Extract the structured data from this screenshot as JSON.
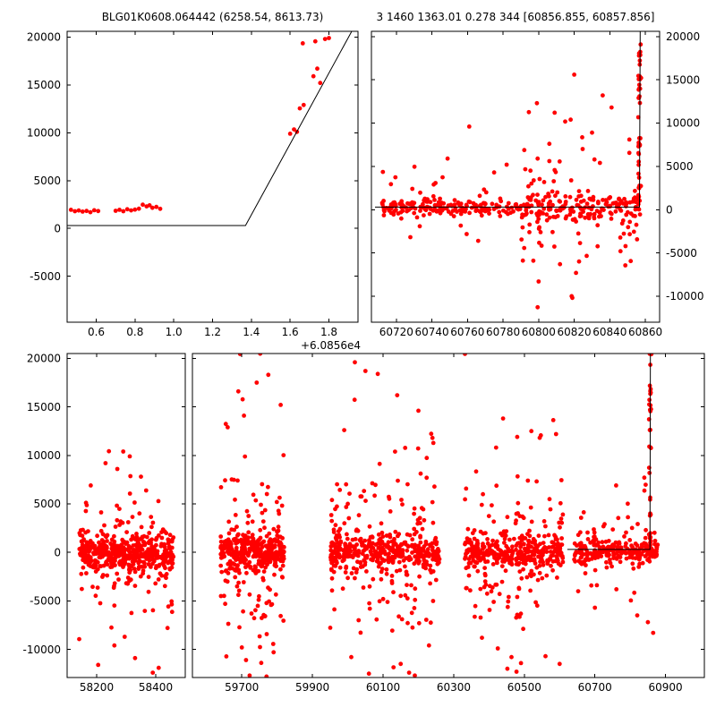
{
  "colors": {
    "background": "#ffffff",
    "point": "#ff0000",
    "line": "#000000",
    "axis": "#000000",
    "text": "#000000"
  },
  "chart_data": {
    "type": "scatter",
    "marker_radius": 2.4,
    "subplots": [
      {
        "name": "event-zoom",
        "title": "BLG01K0608.064442 (6258.54, 8613.73)",
        "px": {
          "l": 75,
          "t": 35,
          "r": 400,
          "b": 360
        },
        "xlim": [
          60856.45,
          60857.95
        ],
        "ylim": [
          -9800,
          20600
        ],
        "x_offset_label": "+6.0856e4",
        "xticks": [
          {
            "v": 60856.6,
            "label": "0.6"
          },
          {
            "v": 60856.8,
            "label": "0.8"
          },
          {
            "v": 60857.0,
            "label": "1.0"
          },
          {
            "v": 60857.2,
            "label": "1.2"
          },
          {
            "v": 60857.4,
            "label": "1.4"
          },
          {
            "v": 60857.6,
            "label": "1.6"
          },
          {
            "v": 60857.8,
            "label": "1.8"
          }
        ],
        "yticks": [
          {
            "v": 20000,
            "label": "20000"
          },
          {
            "v": 15000,
            "label": "15000"
          },
          {
            "v": 10000,
            "label": "10000"
          },
          {
            "v": 5000,
            "label": "5000"
          },
          {
            "v": 0,
            "label": "0"
          },
          {
            "v": -5000,
            "label": "-5000"
          }
        ],
        "ylabel_side": "left",
        "points": [
          [
            60856.47,
            1950
          ],
          [
            60856.49,
            1800
          ],
          [
            60856.51,
            1870
          ],
          [
            60856.53,
            1760
          ],
          [
            60856.55,
            1830
          ],
          [
            60856.57,
            1700
          ],
          [
            60856.59,
            1900
          ],
          [
            60856.61,
            1820
          ],
          [
            60856.7,
            1850
          ],
          [
            60856.72,
            1950
          ],
          [
            60856.74,
            1800
          ],
          [
            60856.76,
            2000
          ],
          [
            60856.78,
            1880
          ],
          [
            60856.8,
            1970
          ],
          [
            60856.82,
            2060
          ],
          [
            60856.84,
            2480
          ],
          [
            60856.86,
            2300
          ],
          [
            60856.875,
            2420
          ],
          [
            60856.89,
            2150
          ],
          [
            60856.91,
            2250
          ],
          [
            60856.93,
            2050
          ],
          [
            60857.6,
            9900
          ],
          [
            60857.62,
            10350
          ],
          [
            60857.635,
            10100
          ],
          [
            60857.65,
            12550
          ],
          [
            60857.67,
            12900
          ],
          [
            60857.665,
            19350
          ],
          [
            60857.72,
            15900
          ],
          [
            60857.73,
            19550
          ],
          [
            60857.74,
            16700
          ],
          [
            60857.755,
            15200
          ],
          [
            60857.78,
            19800
          ],
          [
            60857.8,
            19900
          ]
        ],
        "clusters": [],
        "lines": [
          [
            [
              60856.45,
              300
            ],
            [
              60857.37,
              300
            ],
            [
              60857.95,
              21800
            ]
          ]
        ]
      },
      {
        "name": "season-zoom",
        "title": "3 1460 1363.01 0.278 344 [60856.855, 60857.856]",
        "px": {
          "l": 415,
          "t": 35,
          "r": 737,
          "b": 360
        },
        "xlim": [
          60706,
          60868
        ],
        "ylim": [
          -13000,
          20600
        ],
        "xticks": [
          {
            "v": 60720,
            "label": "60720"
          },
          {
            "v": 60740,
            "label": "60740"
          },
          {
            "v": 60760,
            "label": "60760"
          },
          {
            "v": 60780,
            "label": "60780"
          },
          {
            "v": 60800,
            "label": "60800"
          },
          {
            "v": 60820,
            "label": "60820"
          },
          {
            "v": 60840,
            "label": "60840"
          },
          {
            "v": 60860,
            "label": "60860"
          }
        ],
        "yticks": [
          {
            "v": 20000,
            "label": "20000"
          },
          {
            "v": 15000,
            "label": "15000"
          },
          {
            "v": 10000,
            "label": "10000"
          },
          {
            "v": 5000,
            "label": "5000"
          },
          {
            "v": 0,
            "label": "0"
          },
          {
            "v": -5000,
            "label": "-5000"
          },
          {
            "v": -10000,
            "label": "-10000"
          }
        ],
        "ylabel_side": "right",
        "points": [
          [
            60800,
            -8300
          ],
          [
            60797,
            -5900
          ],
          [
            60812,
            -6300
          ],
          [
            60846,
            -4800
          ],
          [
            60821,
            -7300
          ],
          [
            60820,
            15600
          ],
          [
            60836,
            13200
          ],
          [
            60818,
            10400
          ],
          [
            60761,
            9600
          ],
          [
            60830,
            8900
          ],
          [
            60841,
            11800
          ],
          [
            60851,
            8100
          ],
          [
            60806,
            7600
          ],
          [
            60782,
            5200
          ],
          [
            60775,
            4300
          ],
          [
            60799,
            12300
          ],
          [
            60809,
            11200
          ],
          [
            60766,
            -3600
          ],
          [
            60741,
            2900
          ],
          [
            60729,
            2400
          ]
        ],
        "clusters": [
          {
            "seed": 11,
            "x0": 60712,
            "x1": 60790,
            "n": 190,
            "mean": 250,
            "core_sigma": 450,
            "tail_frac": 0.1,
            "tail_sigma": 2300
          },
          {
            "seed": 12,
            "x0": 60790,
            "x1": 60858,
            "n": 230,
            "mean": 250,
            "core_sigma": 800,
            "tail_frac": 0.3,
            "tail_sigma": 4200
          },
          {
            "seed": 13,
            "x0": 60856.0,
            "x1": 60857.6,
            "n": 42,
            "uniform_y": [
              500,
              19700
            ]
          }
        ],
        "lines": [
          [
            [
              60708,
              300
            ],
            [
              60856.7,
              300
            ],
            [
              60857.1,
              20600
            ]
          ]
        ]
      },
      {
        "name": "full-early",
        "title": "",
        "px": {
          "l": 75,
          "t": 395,
          "r": 207,
          "b": 757
        },
        "xlim": [
          58100,
          58500
        ],
        "ylim": [
          -12900,
          20500
        ],
        "xticks": [
          {
            "v": 58200,
            "label": "58200"
          },
          {
            "v": 58400,
            "label": "58400"
          }
        ],
        "yticks": [
          {
            "v": 20000,
            "label": "20000"
          },
          {
            "v": 15000,
            "label": "15000"
          },
          {
            "v": 10000,
            "label": "10000"
          },
          {
            "v": 5000,
            "label": "5000"
          },
          {
            "v": 0,
            "label": "0"
          },
          {
            "v": -5000,
            "label": "-5000"
          },
          {
            "v": -10000,
            "label": "-10000"
          }
        ],
        "ylabel_side": "left",
        "points": [
          [
            58290,
            10400
          ],
          [
            58312,
            9900
          ],
          [
            58270,
            8600
          ],
          [
            58350,
            7800
          ],
          [
            58230,
            9200
          ],
          [
            58205,
            -11600
          ],
          [
            58330,
            -10900
          ],
          [
            58390,
            -12400
          ],
          [
            58260,
            -9600
          ],
          [
            58295,
            -8700
          ],
          [
            58410,
            -11900
          ],
          [
            58180,
            6900
          ],
          [
            58440,
            -7800
          ]
        ],
        "clusters": [
          {
            "seed": 21,
            "x0": 58140,
            "x1": 58460,
            "n": 520,
            "mean": -100,
            "core_sigma": 900,
            "tail_frac": 0.22,
            "tail_sigma": 3600
          }
        ],
        "lines": []
      },
      {
        "name": "full-recent",
        "title": "",
        "px": {
          "l": 215,
          "t": 395,
          "r": 787,
          "b": 757
        },
        "xlim": [
          59560,
          61010
        ],
        "ylim": [
          -12900,
          20500
        ],
        "xticks": [
          {
            "v": 59700,
            "label": "59700"
          },
          {
            "v": 59900,
            "label": "59900"
          },
          {
            "v": 60100,
            "label": "60100"
          },
          {
            "v": 60300,
            "label": "60300"
          },
          {
            "v": 60500,
            "label": "60500"
          },
          {
            "v": 60700,
            "label": "60700"
          },
          {
            "v": 60900,
            "label": "60900"
          }
        ],
        "yticks": [
          {
            "v": 20000,
            "label": "20000"
          },
          {
            "v": 15000,
            "label": "15000"
          },
          {
            "v": 10000,
            "label": "10000"
          },
          {
            "v": 5000,
            "label": "5000"
          },
          {
            "v": 0,
            "label": "0"
          },
          {
            "v": -5000,
            "label": "-5000"
          },
          {
            "v": -10000,
            "label": "-10000"
          }
        ],
        "ylabel_side": "none",
        "points": [
          [
            59690,
            16600
          ],
          [
            59660,
            12900
          ],
          [
            59775,
            18300
          ],
          [
            59810,
            15200
          ],
          [
            59742,
            17500
          ],
          [
            59706,
            14100
          ],
          [
            59695,
            20450
          ],
          [
            59752,
            20480
          ],
          [
            59722,
            -12700
          ],
          [
            59755,
            -11400
          ],
          [
            59700,
            -9800
          ],
          [
            59790,
            -10300
          ],
          [
            59770,
            -12800
          ],
          [
            60050,
            18700
          ],
          [
            60085,
            18400
          ],
          [
            60200,
            14600
          ],
          [
            59990,
            12600
          ],
          [
            60140,
            16200
          ],
          [
            60240,
            11800
          ],
          [
            60020,
            19600
          ],
          [
            60060,
            -12500
          ],
          [
            60150,
            -11500
          ],
          [
            60230,
            -9600
          ],
          [
            60010,
            -10800
          ],
          [
            60190,
            -12700
          ],
          [
            60520,
            12500
          ],
          [
            60480,
            11900
          ],
          [
            60590,
            12200
          ],
          [
            60420,
            10800
          ],
          [
            60440,
            13800
          ],
          [
            60332,
            20460
          ],
          [
            60560,
            -10700
          ],
          [
            60425,
            -9900
          ],
          [
            60478,
            -12300
          ],
          [
            60380,
            -8800
          ],
          [
            60600,
            -11500
          ],
          [
            60760,
            6900
          ],
          [
            60840,
            7700
          ],
          [
            60856,
            12600
          ],
          [
            60854,
            10900
          ],
          [
            60855,
            20470
          ],
          [
            60860,
            20440
          ],
          [
            60865,
            -8300
          ],
          [
            60850,
            -7200
          ],
          [
            60700,
            -5700
          ],
          [
            60820,
            -6500
          ]
        ],
        "clusters": [
          {
            "seed": 22,
            "x0": 59640,
            "x1": 59820,
            "n": 430,
            "mean": 0,
            "core_sigma": 900,
            "tail_frac": 0.28,
            "tail_sigma": 4800
          },
          {
            "seed": 23,
            "x0": 59950,
            "x1": 60260,
            "n": 480,
            "mean": 0,
            "core_sigma": 900,
            "tail_frac": 0.28,
            "tail_sigma": 4800
          },
          {
            "seed": 24,
            "x0": 60330,
            "x1": 60610,
            "n": 430,
            "mean": 0,
            "core_sigma": 850,
            "tail_frac": 0.26,
            "tail_sigma": 4300
          },
          {
            "seed": 25,
            "x0": 60640,
            "x1": 60880,
            "n": 260,
            "mean": 100,
            "core_sigma": 600,
            "tail_frac": 0.18,
            "tail_sigma": 2800
          },
          {
            "seed": 26,
            "x0": 60853,
            "x1": 60859,
            "n": 30,
            "uniform_y": [
              500,
              19600
            ]
          }
        ],
        "lines": [
          [
            [
              60622,
              300
            ],
            [
              60855.8,
              300
            ],
            [
              60857.2,
              20500
            ]
          ]
        ]
      }
    ]
  }
}
